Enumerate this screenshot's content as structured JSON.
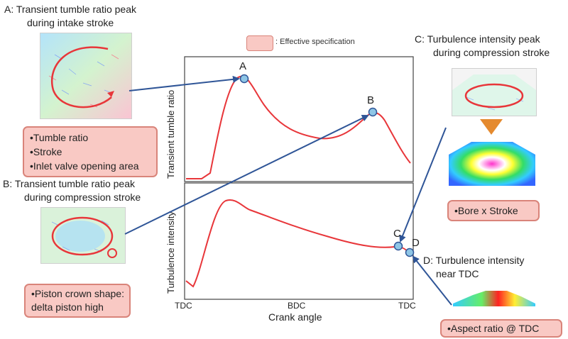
{
  "panels": {
    "a_title_line1": "A: Transient  tumble ratio peak",
    "a_title_line2": "during intake stroke",
    "b_title_line1": "B: Transient  tumble ratio peak",
    "b_title_line2": "during compression stroke",
    "c_title_line1": "C: Turbulence intensity peak",
    "c_title_line2": "during compression stroke",
    "d_title_line1": "D: Turbulence intensity",
    "d_title_line2": "near TDC"
  },
  "boxes": {
    "a_items": [
      "•Tumble ratio",
      "•Stroke",
      "•Inlet valve opening area"
    ],
    "b_items": [
      "•Piston crown shape:",
      "delta piston high"
    ],
    "c_items": [
      "•Bore x Stroke"
    ],
    "d_items": [
      "•Aspect ratio @ TDC"
    ]
  },
  "legend": {
    "label": ": Effective specification",
    "color": "#f9c9c4"
  },
  "chart": {
    "top_ylabel": "Transient tumble ratio",
    "bottom_ylabel": "Turbulence intensity",
    "xlabel": "Crank angle",
    "xticks": [
      "TDC",
      "BDC",
      "TDC"
    ],
    "points": {
      "a": "A",
      "b": "B",
      "c": "C",
      "d": "D"
    },
    "curve_color": "#e8363a",
    "arrow_color": "#2f5597"
  }
}
